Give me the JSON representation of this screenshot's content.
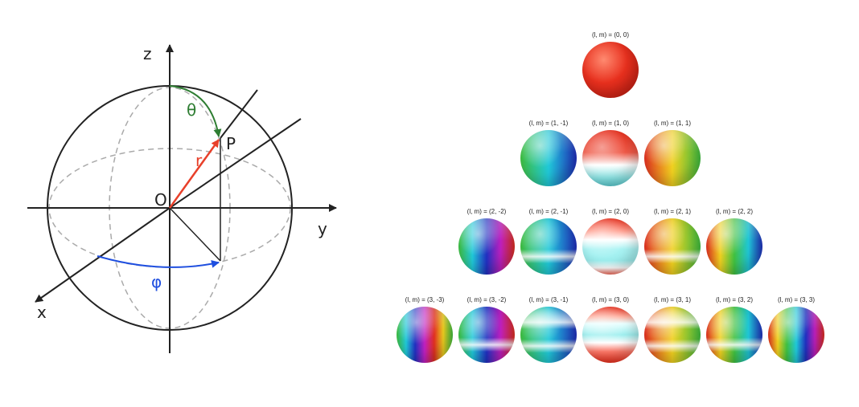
{
  "diagram": {
    "axis_labels": {
      "z": "z",
      "y": "y",
      "x": "x"
    },
    "origin_label": "O",
    "point_label": "P",
    "radius_label": "r",
    "theta_label": "θ",
    "phi_label": "φ",
    "colors": {
      "r": "#e8402a",
      "theta": "#2e7d32",
      "phi": "#1f4fe0",
      "axis": "#222222",
      "dashed": "#aaaaaa"
    }
  },
  "harmonics": {
    "rows": [
      [
        {
          "label": "(l, m) = (0, 0)",
          "l": 0,
          "m": 0
        }
      ],
      [
        {
          "label": "(l, m) = (1, -1)",
          "l": 1,
          "m": -1
        },
        {
          "label": "(l, m) = (1, 0)",
          "l": 1,
          "m": 0
        },
        {
          "label": "(l, m) = (1, 1)",
          "l": 1,
          "m": 1
        }
      ],
      [
        {
          "label": "(l, m) = (2, -2)",
          "l": 2,
          "m": -2
        },
        {
          "label": "(l, m) = (2, -1)",
          "l": 2,
          "m": -1
        },
        {
          "label": "(l, m) = (2, 0)",
          "l": 2,
          "m": 0
        },
        {
          "label": "(l, m) = (2, 1)",
          "l": 2,
          "m": 1
        },
        {
          "label": "(l, m) = (2, 2)",
          "l": 2,
          "m": 2
        }
      ],
      [
        {
          "label": "(l, m) = (3, -3)",
          "l": 3,
          "m": -3
        },
        {
          "label": "(l, m) = (3, -2)",
          "l": 3,
          "m": -2
        },
        {
          "label": "(l, m) = (3, -1)",
          "l": 3,
          "m": -1
        },
        {
          "label": "(l, m) = (3, 0)",
          "l": 3,
          "m": 0
        },
        {
          "label": "(l, m) = (3, 1)",
          "l": 3,
          "m": 1
        },
        {
          "label": "(l, m) = (3, 2)",
          "l": 3,
          "m": 2
        },
        {
          "label": "(l, m) = (3, 3)",
          "l": 3,
          "m": 3
        }
      ]
    ]
  }
}
